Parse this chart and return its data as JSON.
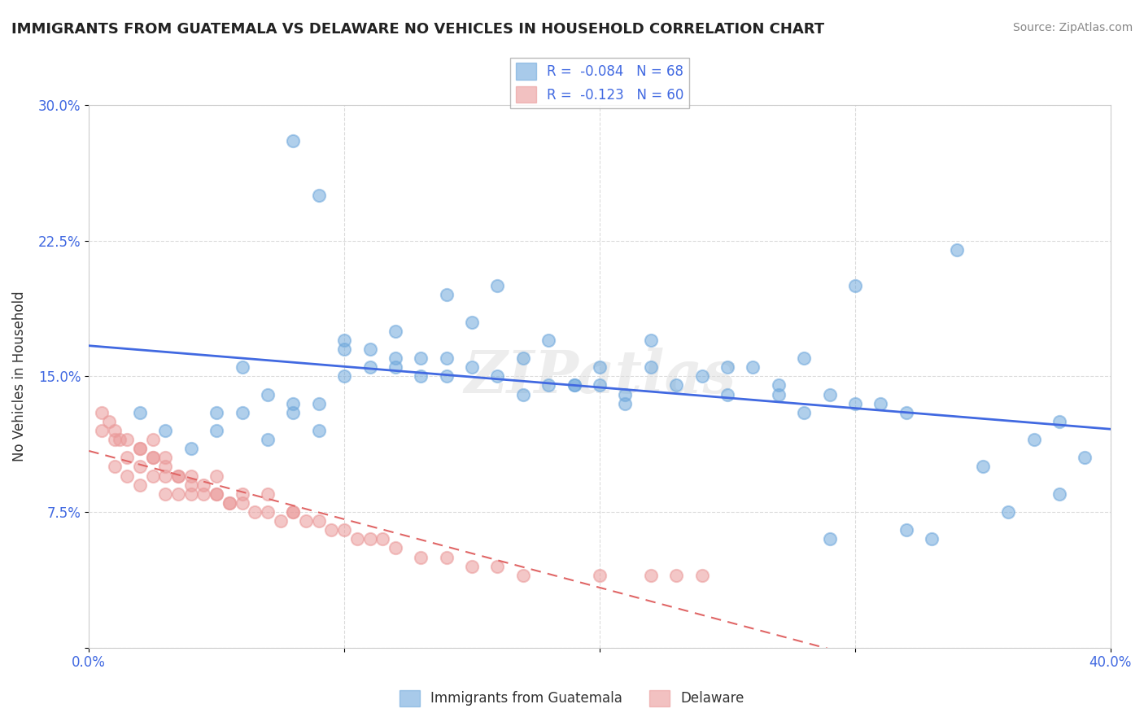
{
  "title": "IMMIGRANTS FROM GUATEMALA VS DELAWARE NO VEHICLES IN HOUSEHOLD CORRELATION CHART",
  "source": "Source: ZipAtlas.com",
  "xlabel": "",
  "ylabel": "No Vehicles in Household",
  "xlim": [
    0.0,
    0.4
  ],
  "ylim": [
    0.0,
    0.3
  ],
  "xticks": [
    0.0,
    0.1,
    0.2,
    0.3,
    0.4
  ],
  "xticklabels": [
    "0.0%",
    "",
    "",
    "",
    "40.0%"
  ],
  "yticks": [
    0.0,
    0.075,
    0.15,
    0.225,
    0.3
  ],
  "yticklabels": [
    "",
    "7.5%",
    "15.0%",
    "22.5%",
    "30.0%"
  ],
  "legend_r1": "R =  -0.084",
  "legend_n1": "N = 68",
  "legend_r2": "R =  -0.123",
  "legend_n2": "N = 60",
  "blue_color": "#6fa8dc",
  "pink_color": "#ea9999",
  "blue_line_color": "#4169e1",
  "pink_line_color": "#e06666",
  "watermark": "ZIPatlas",
  "legend_label1": "Immigrants from Guatemala",
  "legend_label2": "Delaware",
  "blue_scatter_x": [
    0.02,
    0.03,
    0.04,
    0.05,
    0.05,
    0.06,
    0.07,
    0.07,
    0.08,
    0.08,
    0.09,
    0.09,
    0.1,
    0.1,
    0.1,
    0.11,
    0.11,
    0.12,
    0.12,
    0.12,
    0.13,
    0.13,
    0.14,
    0.14,
    0.15,
    0.15,
    0.16,
    0.17,
    0.17,
    0.18,
    0.18,
    0.19,
    0.2,
    0.2,
    0.21,
    0.22,
    0.23,
    0.24,
    0.25,
    0.25,
    0.26,
    0.27,
    0.28,
    0.29,
    0.3,
    0.3,
    0.31,
    0.32,
    0.14,
    0.16,
    0.19,
    0.21,
    0.22,
    0.27,
    0.33,
    0.35,
    0.37,
    0.38,
    0.39,
    0.34,
    0.08,
    0.09,
    0.06,
    0.28,
    0.29,
    0.32,
    0.36,
    0.38
  ],
  "blue_scatter_y": [
    0.13,
    0.12,
    0.11,
    0.12,
    0.13,
    0.13,
    0.115,
    0.14,
    0.13,
    0.135,
    0.12,
    0.135,
    0.165,
    0.17,
    0.15,
    0.155,
    0.165,
    0.16,
    0.155,
    0.175,
    0.15,
    0.16,
    0.16,
    0.15,
    0.18,
    0.155,
    0.15,
    0.14,
    0.16,
    0.145,
    0.17,
    0.145,
    0.155,
    0.145,
    0.14,
    0.17,
    0.145,
    0.15,
    0.14,
    0.155,
    0.155,
    0.14,
    0.13,
    0.14,
    0.135,
    0.2,
    0.135,
    0.13,
    0.195,
    0.2,
    0.145,
    0.135,
    0.155,
    0.145,
    0.06,
    0.1,
    0.115,
    0.085,
    0.105,
    0.22,
    0.28,
    0.25,
    0.155,
    0.16,
    0.06,
    0.065,
    0.075,
    0.125
  ],
  "pink_scatter_x": [
    0.005,
    0.01,
    0.01,
    0.015,
    0.015,
    0.015,
    0.02,
    0.02,
    0.02,
    0.025,
    0.025,
    0.025,
    0.03,
    0.03,
    0.03,
    0.035,
    0.035,
    0.04,
    0.04,
    0.045,
    0.045,
    0.05,
    0.05,
    0.055,
    0.06,
    0.06,
    0.065,
    0.07,
    0.07,
    0.075,
    0.08,
    0.085,
    0.09,
    0.095,
    0.1,
    0.105,
    0.11,
    0.115,
    0.12,
    0.13,
    0.14,
    0.15,
    0.16,
    0.17,
    0.2,
    0.22,
    0.23,
    0.24,
    0.005,
    0.008,
    0.01,
    0.012,
    0.02,
    0.025,
    0.03,
    0.035,
    0.04,
    0.05,
    0.055,
    0.08
  ],
  "pink_scatter_y": [
    0.12,
    0.1,
    0.115,
    0.095,
    0.105,
    0.115,
    0.09,
    0.1,
    0.11,
    0.095,
    0.105,
    0.115,
    0.085,
    0.095,
    0.105,
    0.085,
    0.095,
    0.085,
    0.095,
    0.085,
    0.09,
    0.085,
    0.095,
    0.08,
    0.08,
    0.085,
    0.075,
    0.075,
    0.085,
    0.07,
    0.075,
    0.07,
    0.07,
    0.065,
    0.065,
    0.06,
    0.06,
    0.06,
    0.055,
    0.05,
    0.05,
    0.045,
    0.045,
    0.04,
    0.04,
    0.04,
    0.04,
    0.04,
    0.13,
    0.125,
    0.12,
    0.115,
    0.11,
    0.105,
    0.1,
    0.095,
    0.09,
    0.085,
    0.08,
    0.075
  ]
}
